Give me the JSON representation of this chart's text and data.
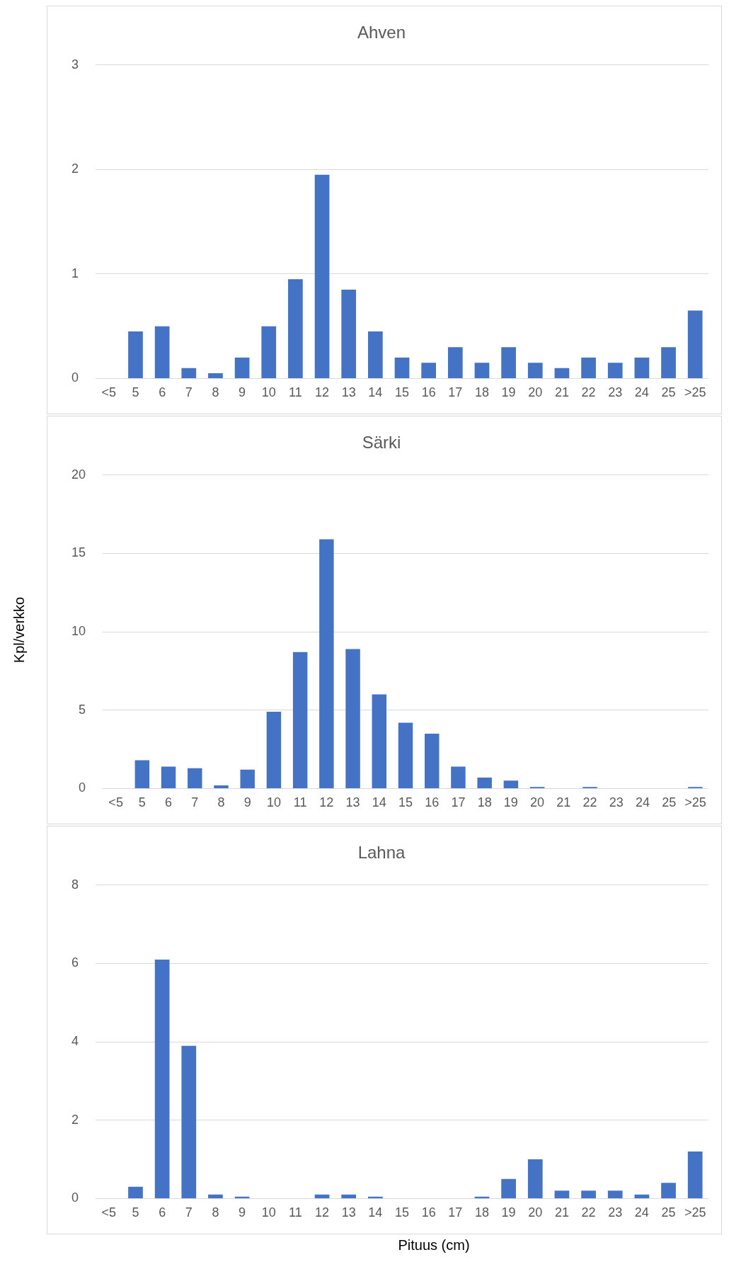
{
  "chart_data": [
    {
      "type": "bar",
      "title": "Ahven",
      "categories": [
        "<5",
        "5",
        "6",
        "7",
        "8",
        "9",
        "10",
        "11",
        "12",
        "13",
        "14",
        "15",
        "16",
        "17",
        "18",
        "19",
        "20",
        "21",
        "22",
        "23",
        "24",
        "25",
        ">25"
      ],
      "color": "#4472c4",
      "values": [
        0,
        0.45,
        0.5,
        0.1,
        0.05,
        0.2,
        0.5,
        0.95,
        1.95,
        0.85,
        0.45,
        0.2,
        0.15,
        0.3,
        0.15,
        0.3,
        0.15,
        0.1,
        0.2,
        0.15,
        0.2,
        0.3,
        0.65
      ],
      "ylim": [
        0,
        3
      ],
      "yticks": [
        0,
        1,
        2,
        3
      ],
      "grid": "y"
    },
    {
      "type": "bar",
      "title": "Särki",
      "ylabel": "Kpl/verkko",
      "categories": [
        "<5",
        "5",
        "6",
        "7",
        "8",
        "9",
        "10",
        "11",
        "12",
        "13",
        "14",
        "15",
        "16",
        "17",
        "18",
        "19",
        "20",
        "21",
        "22",
        "23",
        "24",
        "25",
        ">25"
      ],
      "color": "#4472c4",
      "values": [
        0,
        1.8,
        1.4,
        1.3,
        0.2,
        1.2,
        4.9,
        8.7,
        15.9,
        8.9,
        6.0,
        4.2,
        3.5,
        1.4,
        0.7,
        0.5,
        0.1,
        0,
        0.1,
        0,
        0,
        0,
        0.1
      ],
      "ylim": [
        0,
        20
      ],
      "yticks": [
        0,
        5,
        10,
        15,
        20
      ],
      "grid": "y"
    },
    {
      "type": "bar",
      "title": "Lahna",
      "xlabel": "Pituus (cm)",
      "categories": [
        "<5",
        "5",
        "6",
        "7",
        "8",
        "9",
        "10",
        "11",
        "12",
        "13",
        "14",
        "15",
        "16",
        "17",
        "18",
        "19",
        "20",
        "21",
        "22",
        "23",
        "24",
        "25",
        ">25"
      ],
      "color": "#4472c4",
      "values": [
        0,
        0.3,
        6.1,
        3.9,
        0.1,
        0.05,
        0,
        0,
        0.1,
        0.1,
        0.05,
        0,
        0,
        0,
        0.05,
        0.5,
        1.0,
        0.2,
        0.2,
        0.2,
        0.1,
        0.4,
        1.2
      ],
      "ylim": [
        0,
        8
      ],
      "yticks": [
        0,
        2,
        4,
        6,
        8
      ],
      "grid": "y"
    }
  ]
}
